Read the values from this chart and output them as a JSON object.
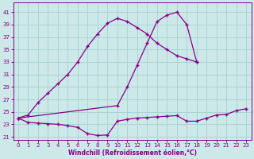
{
  "xlabel": "Windchill (Refroidissement éolien,°C)",
  "bg_color": "#cce8e8",
  "grid_color": "#aad4d4",
  "line_color": "#880088",
  "x_ticks": [
    0,
    1,
    2,
    3,
    4,
    5,
    6,
    7,
    8,
    9,
    10,
    11,
    12,
    13,
    14,
    15,
    16,
    17,
    18,
    19,
    20,
    21,
    22,
    23
  ],
  "y_ticks": [
    21,
    23,
    25,
    27,
    29,
    31,
    33,
    35,
    37,
    39,
    41
  ],
  "xlim": [
    -0.5,
    23.5
  ],
  "ylim": [
    20.5,
    42.5
  ],
  "curve_main_x": [
    0,
    1,
    2,
    3,
    4,
    5,
    6,
    7,
    8,
    9,
    10,
    11,
    12,
    13,
    14,
    15,
    16,
    17,
    18
  ],
  "curve_main_y": [
    24.0,
    24.5,
    26.5,
    28.0,
    29.5,
    31.0,
    33.0,
    35.5,
    37.5,
    39.2,
    40.0,
    39.5,
    38.5,
    37.5,
    36.0,
    35.0,
    34.0,
    33.5,
    33.0
  ],
  "curve_peak_x": [
    0,
    10,
    11,
    12,
    13,
    14,
    15,
    16,
    17,
    18
  ],
  "curve_peak_y": [
    24.0,
    26.0,
    29.0,
    32.5,
    36.0,
    39.5,
    40.5,
    41.0,
    39.0,
    33.0
  ],
  "curve_flat_x": [
    0,
    1,
    2,
    3,
    4,
    5,
    6,
    7,
    8,
    9,
    10,
    11,
    12,
    13,
    14,
    15,
    16,
    17,
    18,
    19,
    20,
    21,
    22,
    23
  ],
  "curve_flat_y": [
    24.0,
    23.3,
    23.2,
    23.1,
    23.0,
    22.8,
    22.5,
    21.5,
    21.2,
    21.3,
    23.5,
    23.8,
    24.0,
    24.1,
    24.2,
    24.3,
    24.4,
    23.5,
    23.5,
    24.0,
    24.5,
    24.6,
    25.2,
    25.5
  ]
}
